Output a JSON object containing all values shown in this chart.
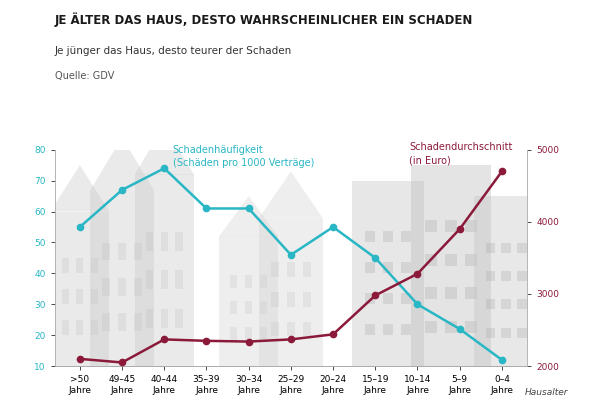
{
  "title": "JE ÄLTER DAS HAUS, DESTO WAHRSCHEINLICHER EIN SCHADEN",
  "subtitle": "Je jünger das Haus, desto teurer der Schaden",
  "source": "Quelle: GDV",
  "xlabel": "Hausalter",
  "categories": [
    ">50\nJahre",
    "49–45\nJahre",
    "40–44\nJahre",
    "35–39\nJahre",
    "30–34\nJahre",
    "25–29\nJahre",
    "20–24\nJahre",
    "15–19\nJahre",
    "10–14\nJahre",
    "5–9\nJahre",
    "0–4\nJahre"
  ],
  "haeufigkeit": [
    55,
    67,
    74,
    61,
    61,
    46,
    55,
    45,
    30,
    22,
    12
  ],
  "durchschnitt": [
    2100,
    2050,
    2370,
    2350,
    2340,
    2370,
    2440,
    2980,
    3280,
    3900,
    4700
  ],
  "cyan_color": "#29B6C5",
  "red_color": "#8B1A3A",
  "left_ylim": [
    10,
    80
  ],
  "right_ylim": [
    2000,
    5000
  ],
  "left_yticks": [
    10,
    20,
    30,
    40,
    50,
    60,
    70,
    80
  ],
  "right_yticks": [
    2000,
    3000,
    4000,
    5000
  ],
  "haeufigkeit_label": "Schadenhäufigkeit\n(Schäden pro 1000 Verträge)",
  "durchschnitt_label": "Schadendurchschnitt\n(in Euro)",
  "bg_color": "#FFFFFF",
  "title_fontsize": 8.5,
  "subtitle_fontsize": 7.5,
  "source_fontsize": 7,
  "label_fontsize": 7,
  "tick_fontsize": 6.5
}
